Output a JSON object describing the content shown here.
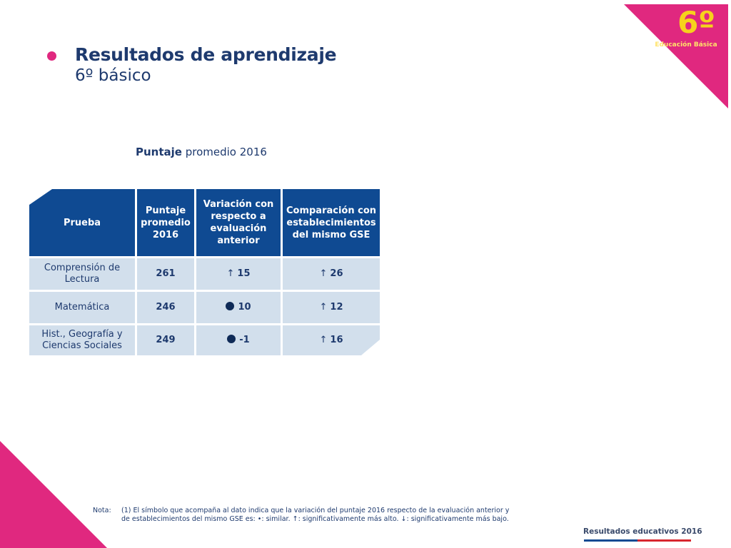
{
  "grade": {
    "number": "6º",
    "level": "Educación Básica"
  },
  "header": {
    "title": "Resultados de aprendizaje",
    "subtitle": "6º básico"
  },
  "table_caption": {
    "bold": "Puntaje",
    "rest": " promedio 2016"
  },
  "table": {
    "headers": [
      "Prueba",
      "Puntaje promedio 2016",
      "Variación con respecto a evaluación anterior",
      "Comparación con establecimientos del mismo GSE"
    ],
    "rows": [
      {
        "prueba": "Comprensión de Lectura",
        "puntaje": "261",
        "variacion_symbol": "↑",
        "variacion": "15",
        "comparacion_symbol": "↑",
        "comparacion": "26"
      },
      {
        "prueba": "Matemática",
        "puntaje": "246",
        "variacion_symbol": "●",
        "variacion": "10",
        "comparacion_symbol": "↑",
        "comparacion": "12"
      },
      {
        "prueba": "Hist., Geografía y Ciencias Sociales",
        "puntaje": "249",
        "variacion_symbol": "●",
        "variacion": "-1",
        "comparacion_symbol": "↑",
        "comparacion": "16"
      }
    ]
  },
  "note": {
    "label": "Nota:",
    "line1": "(1) El símbolo que acompaña al dato indica que la variación del puntaje 2016 respecto de la evaluación anterior y",
    "line2": "de establecimientos del mismo GSE es:   •: similar.   ↑: significativamente más alto.   ↓: significativamente más bajo."
  },
  "footer": {
    "label": "Resultados educativos 2016"
  },
  "colors": {
    "accent": "#e0287f",
    "primary": "#0f4a92",
    "cell": "#d2dfec",
    "text": "#1e3a6e"
  }
}
